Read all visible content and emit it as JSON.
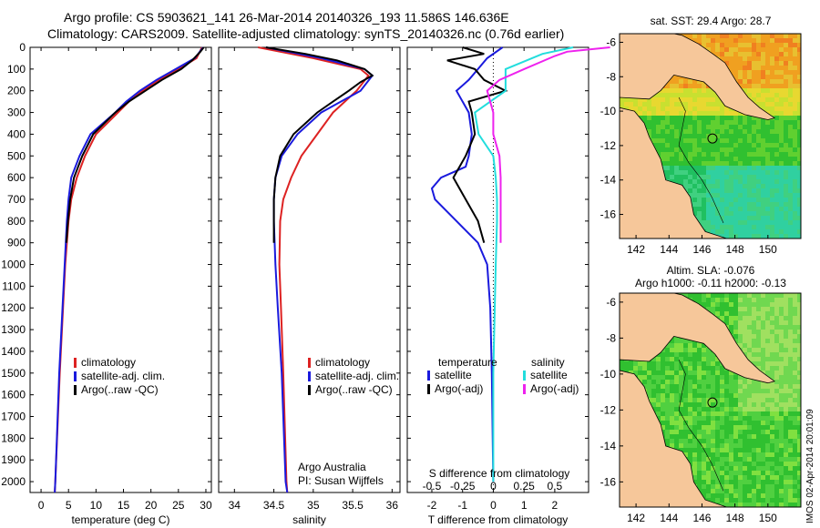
{
  "header": {
    "line1": "Argo profile: CS 5903621_141 26-Mar-2014 20140326_193 11.586S 146.636E",
    "line2": "Climatology: CARS2009. Satellite-adjusted climatology: synTS_20140326.nc (0.76d earlier)"
  },
  "colors": {
    "climatology": "#dd2222",
    "satellite": "#1a1add",
    "argo": "#000000",
    "satellite_s": "#22dddd",
    "argo_s": "#ee22ee",
    "land": "#f6c79a"
  },
  "chart_data": [
    {
      "type": "line",
      "name": "temperature-profile",
      "xlabel": "temperature (deg C)",
      "ylabel": "",
      "xlim": [
        -2,
        31
      ],
      "ylim": [
        2050,
        0
      ],
      "xticks": [
        0,
        5,
        10,
        15,
        20,
        25,
        30
      ],
      "yticks": [
        0,
        100,
        200,
        300,
        400,
        500,
        600,
        700,
        800,
        900,
        1000,
        1100,
        1200,
        1300,
        1400,
        1500,
        1600,
        1700,
        1800,
        1900,
        2000
      ],
      "legend": [
        "climatology",
        "satellite-adj. clim.",
        "Argo(..raw -QC)"
      ],
      "series": [
        {
          "name": "climatology",
          "color": "#dd2222",
          "depth": [
            0,
            50,
            100,
            150,
            200,
            250,
            300,
            400,
            500,
            600,
            700,
            800,
            1000,
            1200,
            1500,
            2000,
            2050
          ],
          "values": [
            29.3,
            28.3,
            25,
            21.5,
            18.5,
            16,
            14,
            10,
            8,
            6.5,
            5.5,
            5,
            4.4,
            4,
            3.4,
            2.6,
            2.5
          ]
        },
        {
          "name": "satellite-adj. clim.",
          "color": "#1a1add",
          "depth": [
            0,
            50,
            100,
            150,
            200,
            250,
            300,
            400,
            500,
            600,
            700,
            800,
            1000,
            1200,
            1500,
            2000,
            2050
          ],
          "values": [
            29.5,
            28,
            24.5,
            21,
            18,
            15.5,
            13.5,
            9,
            7,
            5.5,
            5,
            4.7,
            4.3,
            3.9,
            3.3,
            2.6,
            2.5
          ]
        },
        {
          "name": "Argo(..raw -QC)",
          "color": "#000000",
          "depth": [
            0,
            20,
            60,
            100,
            150,
            200,
            250,
            300,
            400,
            500,
            600,
            700,
            800,
            900
          ],
          "values": [
            29.6,
            29,
            27.5,
            25.5,
            22,
            19,
            16,
            13.5,
            9.5,
            7.5,
            6,
            5.3,
            4.9,
            4.6
          ]
        }
      ]
    },
    {
      "type": "line",
      "name": "salinity-profile",
      "xlabel": "salinity",
      "ylabel": "",
      "xlim": [
        33.8,
        36.1
      ],
      "ylim": [
        2050,
        0
      ],
      "xticks": [
        34,
        34.5,
        35,
        35.5,
        36
      ],
      "legend": [
        "climatology",
        "satellite-adj. clim.",
        "Argo(..raw -QC)"
      ],
      "annotations": [
        "Argo Australia",
        "PI: Susan Wijffels"
      ],
      "series": [
        {
          "name": "climatology",
          "color": "#dd2222",
          "depth": [
            0,
            50,
            100,
            130,
            200,
            300,
            400,
            500,
            600,
            700,
            800,
            1000,
            1200,
            1500,
            2000,
            2050
          ],
          "values": [
            34.3,
            35.0,
            35.6,
            35.7,
            35.55,
            35.25,
            35.05,
            34.85,
            34.72,
            34.62,
            34.58,
            34.57,
            34.59,
            34.62,
            34.66,
            34.67
          ]
        },
        {
          "name": "satellite-adj. clim.",
          "color": "#1a1add",
          "depth": [
            0,
            50,
            100,
            130,
            200,
            300,
            400,
            500,
            600,
            700,
            800,
            1000,
            1200,
            1500,
            2000,
            2050
          ],
          "values": [
            34.4,
            35.1,
            35.65,
            35.75,
            35.6,
            35.1,
            34.8,
            34.6,
            34.52,
            34.5,
            34.5,
            34.52,
            34.55,
            34.6,
            34.65,
            34.67
          ]
        },
        {
          "name": "Argo(..raw -QC)",
          "color": "#000000",
          "depth": [
            0,
            30,
            60,
            100,
            130,
            160,
            200,
            250,
            300,
            400,
            500,
            600,
            700,
            800,
            900
          ],
          "values": [
            34.4,
            34.9,
            35.3,
            35.65,
            35.75,
            35.6,
            35.45,
            35.25,
            35.05,
            34.75,
            34.58,
            34.52,
            34.5,
            34.5,
            34.5
          ]
        }
      ]
    },
    {
      "type": "line",
      "name": "difference-profile",
      "xlabel": "T difference from climatology",
      "xlabel_top": "S difference from climatology",
      "xlim": [
        -2.8,
        3.1
      ],
      "ylim": [
        2050,
        0
      ],
      "xticks": [
        -2,
        -1,
        0,
        1,
        2
      ],
      "xticks_s": [
        -0.5,
        -0.25,
        0,
        0.25,
        0.5
      ],
      "legend": [
        "temperature",
        "satellite",
        "Argo(-adj)",
        "salinity",
        "satellite",
        "Argo(-adj)"
      ],
      "series": [
        {
          "name": "T satellite",
          "color": "#1a1add",
          "depth": [
            0,
            50,
            100,
            150,
            200,
            300,
            400,
            500,
            550,
            600,
            650,
            700,
            800,
            900,
            1000,
            1200,
            1500,
            2000
          ],
          "values": [
            0.3,
            -0.2,
            -0.5,
            -0.8,
            -1.2,
            -0.8,
            -0.7,
            -0.8,
            -0.9,
            -1.7,
            -2.0,
            -1.9,
            -1.2,
            -0.5,
            -0.2,
            -0.1,
            -0.05,
            0
          ]
        },
        {
          "name": "T Argo(-adj)",
          "color": "#000000",
          "depth": [
            0,
            30,
            60,
            100,
            150,
            200,
            250,
            300,
            400,
            500,
            600,
            700,
            800,
            900
          ],
          "values": [
            -1.0,
            -0.3,
            -1.5,
            -0.6,
            -0.3,
            0.4,
            -0.8,
            -0.7,
            -0.6,
            -0.9,
            -1.3,
            -0.9,
            -0.5,
            -0.3
          ]
        },
        {
          "name": "S satellite",
          "color": "#22dddd",
          "depth": [
            0,
            30,
            100,
            200,
            300,
            400,
            500,
            600,
            700,
            800,
            1000,
            1500,
            2000
          ],
          "values": [
            0.65,
            0.4,
            0.1,
            0.1,
            -0.15,
            -0.12,
            0.0,
            0.02,
            0.03,
            0.03,
            0.02,
            0.0,
            0.0
          ]
        },
        {
          "name": "S Argo(-adj)",
          "color": "#ee22ee",
          "depth": [
            0,
            20,
            40,
            100,
            150,
            200,
            300,
            400,
            500,
            600,
            700,
            800,
            900
          ],
          "values": [
            0.95,
            0.6,
            0.5,
            0.25,
            0.05,
            -0.05,
            0.0,
            0.0,
            0.05,
            0.06,
            0.06,
            0.06,
            0.06
          ]
        }
      ]
    },
    {
      "type": "heatmap",
      "name": "sst-map",
      "title": "sat. SST: 29.4  Argo: 28.7",
      "xticks": [
        142,
        144,
        146,
        148,
        150
      ],
      "yticks": [
        -6,
        -8,
        -10,
        -12,
        -14,
        -16
      ],
      "xlim": [
        141,
        152
      ],
      "ylim": [
        -17.4,
        -5.5
      ],
      "float_position": [
        146.636,
        -11.586
      ]
    },
    {
      "type": "heatmap",
      "name": "sla-map",
      "title": "Altim. SLA: -0.076",
      "subtitle": "Argo h1000: -0.11 h2000: -0.13",
      "xticks": [
        142,
        144,
        146,
        148,
        150
      ],
      "yticks": [
        -6,
        -8,
        -10,
        -12,
        -14,
        -16
      ],
      "xlim": [
        141,
        152
      ],
      "ylim": [
        -17.4,
        -5.5
      ],
      "float_position": [
        146.636,
        -11.586
      ]
    }
  ],
  "footer": {
    "stamp": "IMOS 02-Apr-2014 20:01:09"
  }
}
